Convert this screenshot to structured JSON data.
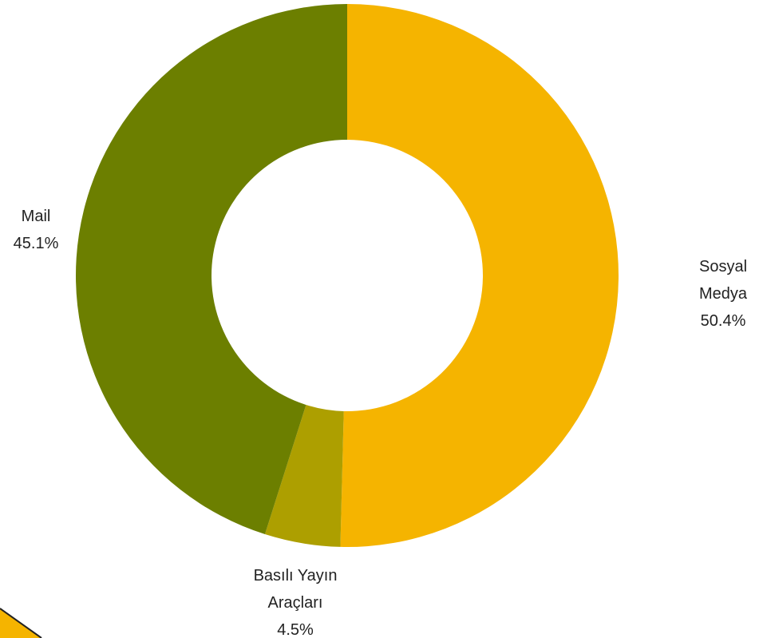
{
  "chart_data": {
    "type": "pie",
    "variant": "donut",
    "slices": [
      {
        "label_lines": [
          "Sosyal",
          "Medya"
        ],
        "value_label": "50.4%",
        "value": 50.4,
        "color": "#F5B400"
      },
      {
        "label_lines": [
          "Basılı Yayın",
          "Araçları"
        ],
        "value_label": "4.5%",
        "value": 4.5,
        "color": "#AD9F00"
      },
      {
        "label_lines": [
          "Mail"
        ],
        "value_label": "45.1%",
        "value": 45.1,
        "color": "#6C7F00"
      }
    ],
    "title": "",
    "legend": "none"
  },
  "decoration": {
    "corner_stripe_color": "#F5B400",
    "corner_stripe_edge_color": "#222222"
  }
}
